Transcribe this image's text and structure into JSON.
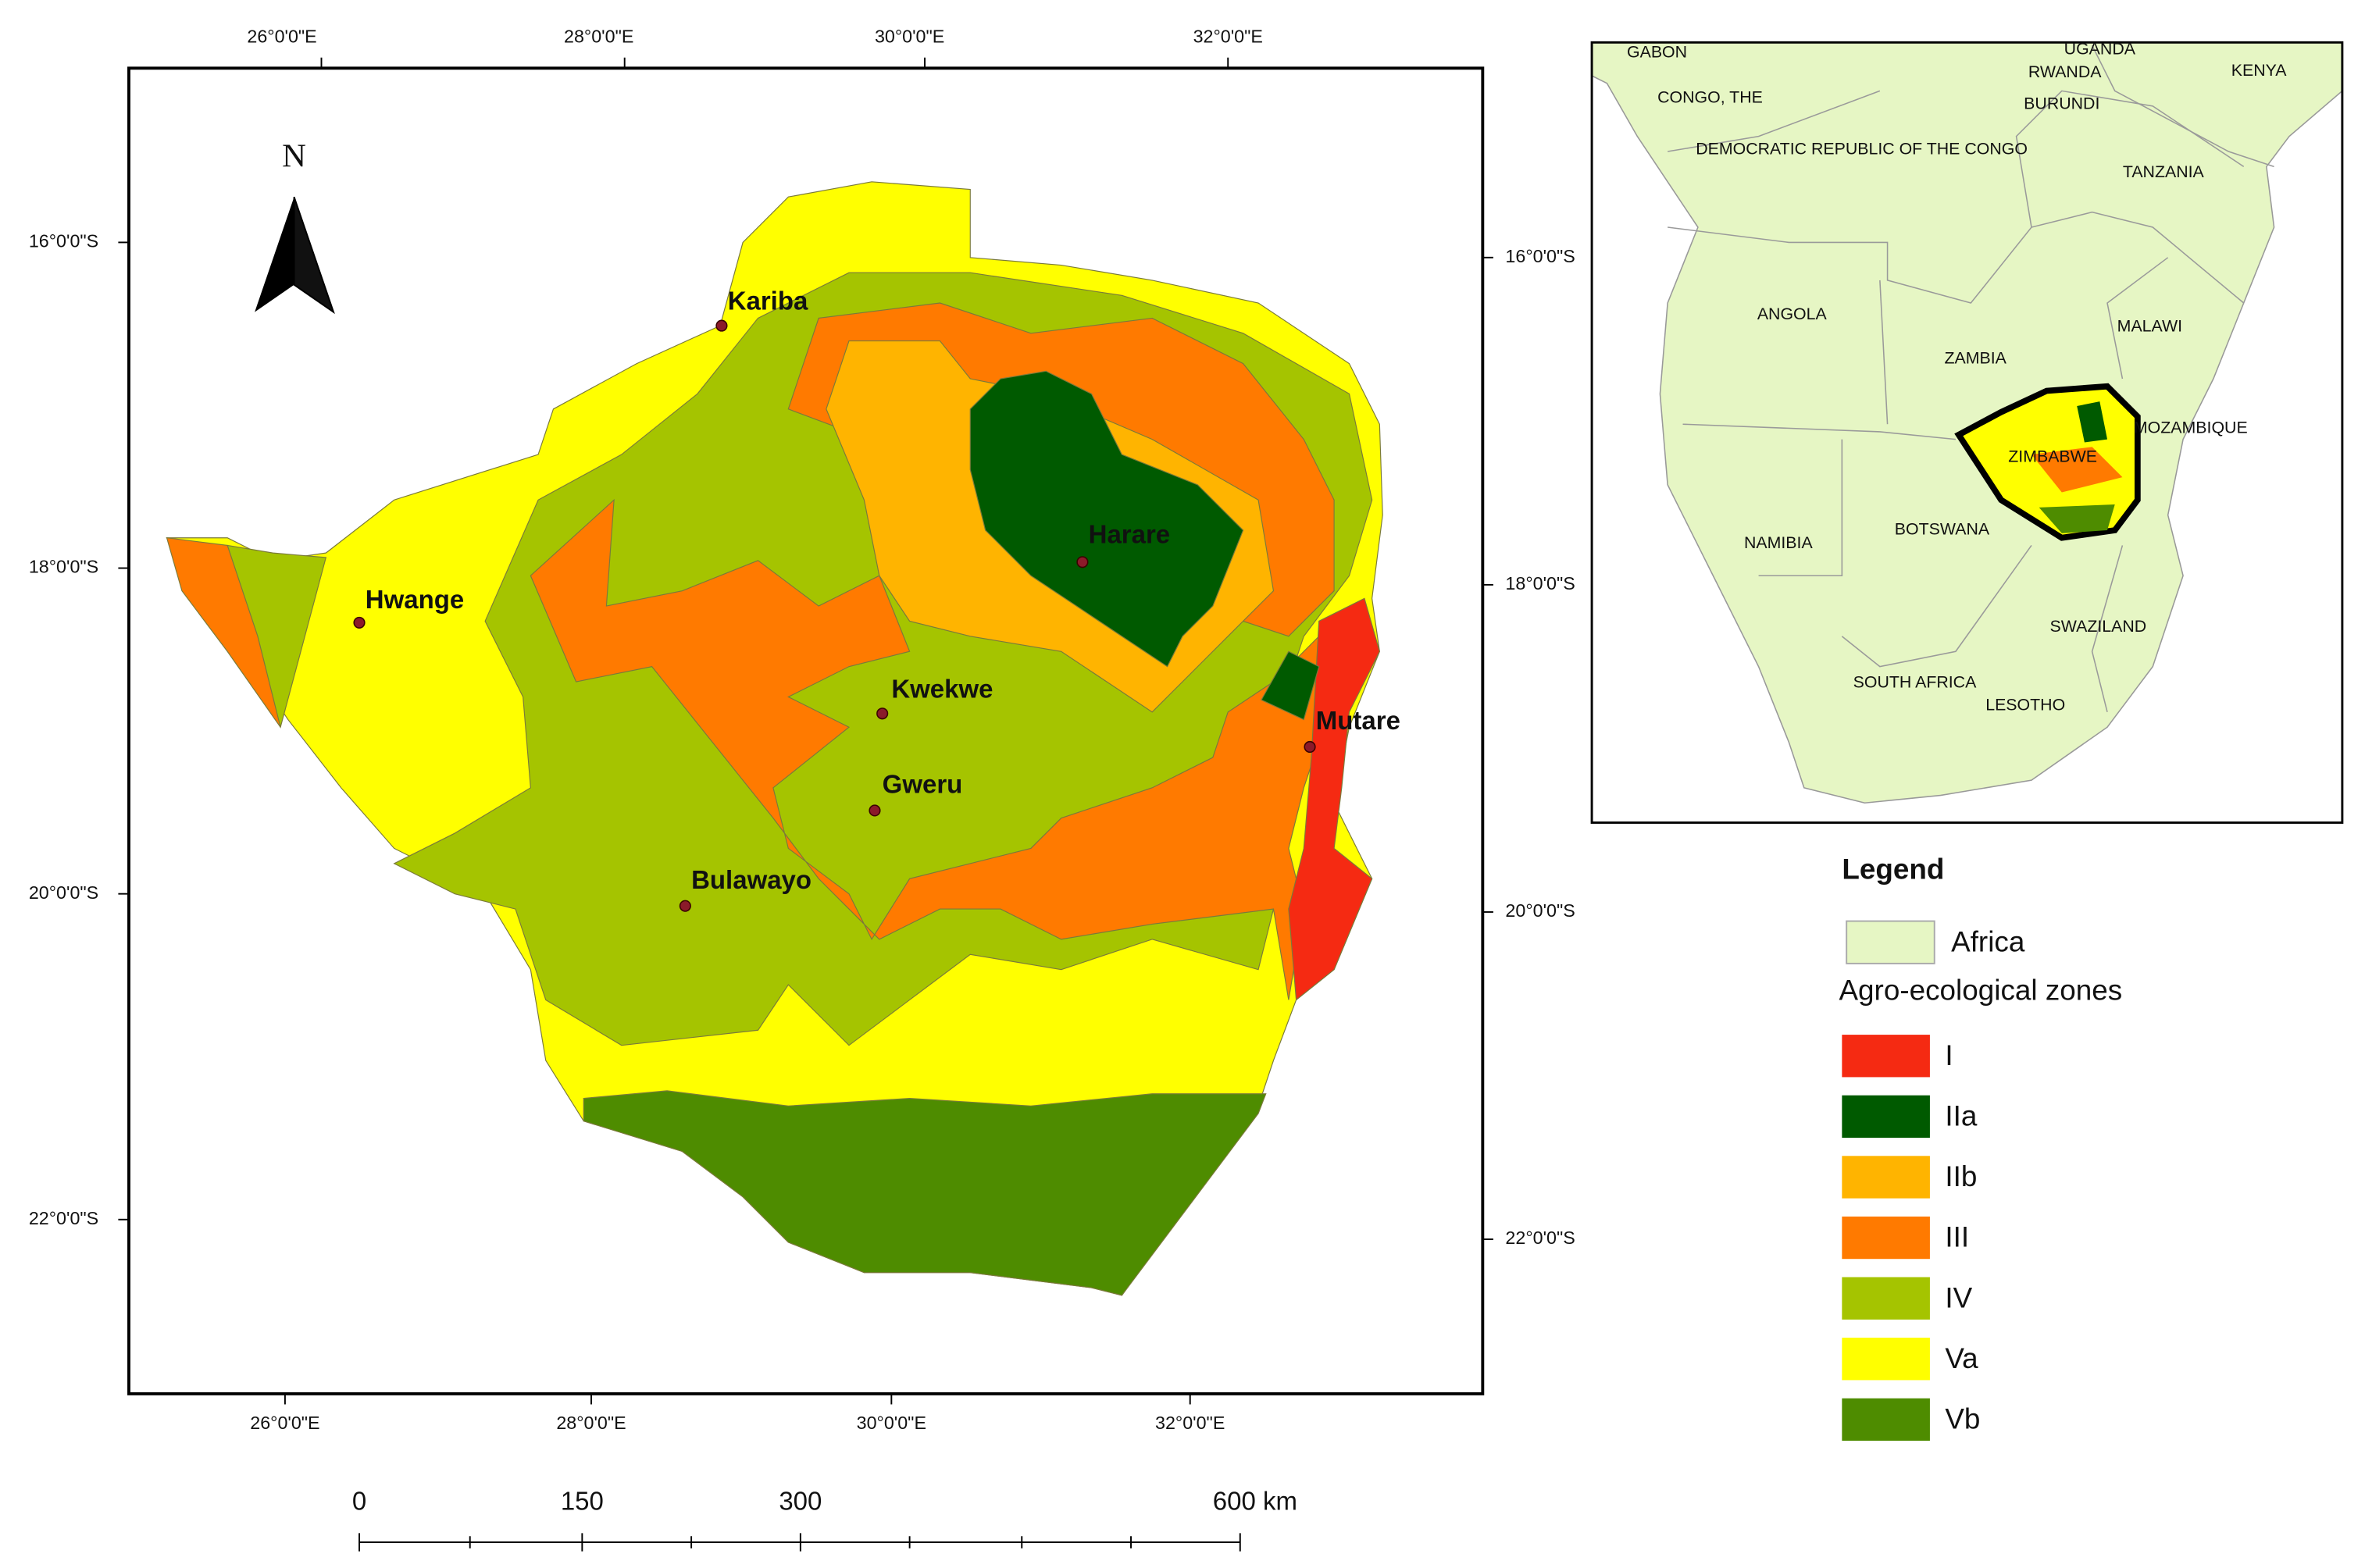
{
  "main_map": {
    "top_lon_labels": [
      "26°0'0\"E",
      "28°0'0\"E",
      "30°0'0\"E",
      "32°0'0\"E"
    ],
    "bottom_lon_labels": [
      "26°0'0\"E",
      "28°0'0\"E",
      "30°0'0\"E",
      "32°0'0\"E"
    ],
    "left_lat_labels": [
      "16°0'0\"S",
      "18°0'0\"S",
      "20°0'0\"S",
      "22°0'0\"S"
    ],
    "right_lat_labels": [
      "16°0'0\"S",
      "18°0'0\"S",
      "20°0'0\"S",
      "22°0'0\"S"
    ],
    "north_label": "N",
    "cities": [
      "Kariba",
      "Harare",
      "Hwange",
      "Kwekwe",
      "Mutare",
      "Gweru",
      "Bulawayo"
    ]
  },
  "scale_bar": {
    "labels": [
      "0",
      "150",
      "300",
      "600 km"
    ]
  },
  "inset_map": {
    "country_labels": [
      "GABON",
      "CONGO, THE",
      "UGANDA",
      "RWANDA",
      "KENYA",
      "BURUNDI",
      "DEMOCRATIC REPUBLIC OF THE CONGO",
      "TANZANIA",
      "ANGOLA",
      "MALAWI",
      "ZAMBIA",
      "MOZAMBIQUE",
      "ZIMBABWE",
      "NAMIBIA",
      "BOTSWANA",
      "SWAZILAND",
      "SOUTH AFRICA",
      "LESOTHO"
    ]
  },
  "legend": {
    "title": "Legend",
    "base_item": "Africa",
    "base_color": "#e6f6c4",
    "group_title": "Agro-ecological zones",
    "items": [
      {
        "label": "I",
        "color": "#f52a12"
      },
      {
        "label": "IIa",
        "color": "#005a00"
      },
      {
        "label": "IIb",
        "color": "#ffb400"
      },
      {
        "label": "III",
        "color": "#ff7a00"
      },
      {
        "label": "IV",
        "color": "#a5c400"
      },
      {
        "label": "Va",
        "color": "#ffff00"
      },
      {
        "label": "Vb",
        "color": "#4e8c00"
      }
    ]
  }
}
